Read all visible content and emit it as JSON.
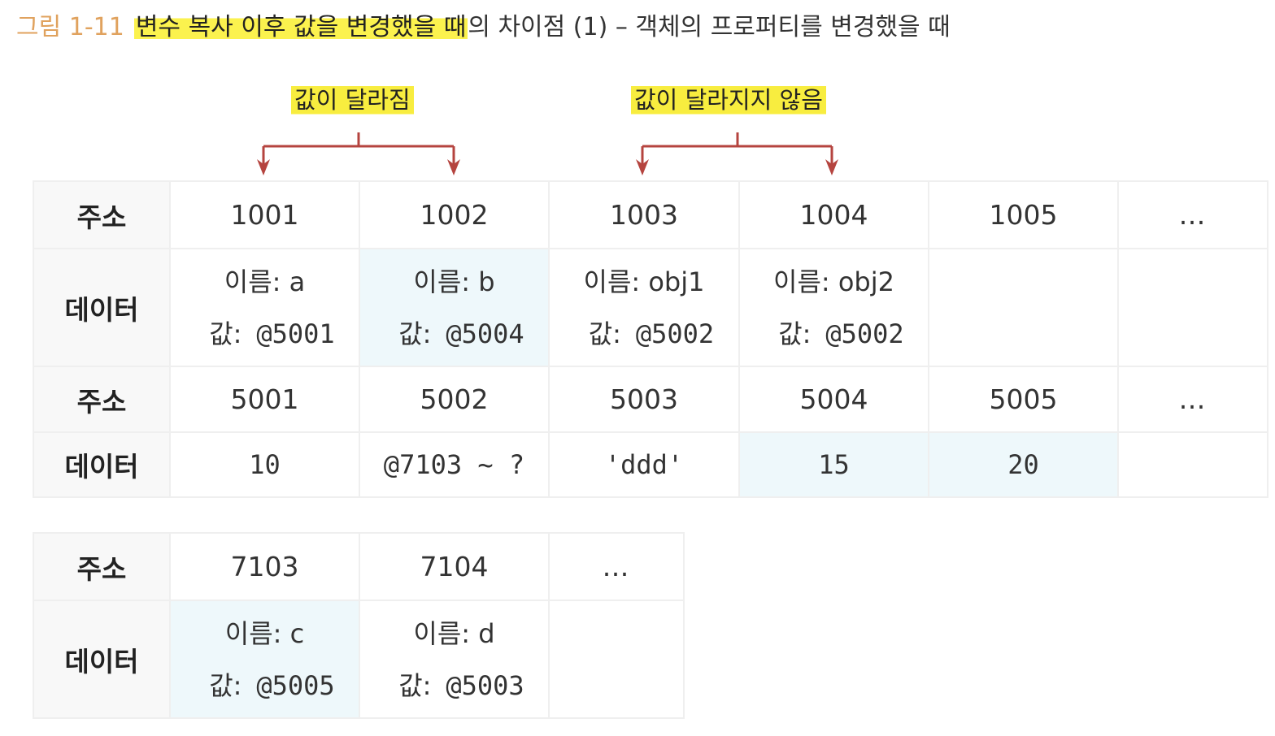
{
  "caption": {
    "number": "그림 1-11",
    "highlighted": "변수 복사 이후 값을 변경했을 때",
    "rest": "의 차이점 (1) – 객체의 프로퍼티를 변경했을 때"
  },
  "labels": {
    "changed": "값이 달라짐",
    "unchanged": "값이 달라지지 않음"
  },
  "colors": {
    "highlight": "#f8ed3f",
    "arrow": "#b5443f",
    "changed_cell": "#eef8fb",
    "header_cell": "#f8f8f8",
    "caption_number": "#e0a25e"
  },
  "table1": {
    "header_addr": "주소",
    "header_data": "데이터",
    "addresses": [
      "1001",
      "1002",
      "1003",
      "1004",
      "1005",
      "…"
    ],
    "cells": [
      {
        "name_label": "이름: a",
        "value_label": "값:",
        "value": "@5001"
      },
      {
        "name_label": "이름: b",
        "value_label": "값:",
        "value": "@5004"
      },
      {
        "name_label": "이름: obj1",
        "value_label": "값:",
        "value": "@5002"
      },
      {
        "name_label": "이름: obj2",
        "value_label": "값:",
        "value": "@5002"
      }
    ]
  },
  "table2": {
    "header_addr": "주소",
    "header_data": "데이터",
    "addresses": [
      "5001",
      "5002",
      "5003",
      "5004",
      "5005",
      "…"
    ],
    "values": [
      "10",
      "@7103 ~ ?",
      "'ddd'",
      "15",
      "20"
    ]
  },
  "table3": {
    "header_addr": "주소",
    "header_data": "데이터",
    "addresses": [
      "7103",
      "7104",
      "…"
    ],
    "cells": [
      {
        "name_label": "이름: c",
        "value_label": "값:",
        "value": "@5005"
      },
      {
        "name_label": "이름: d",
        "value_label": "값:",
        "value": "@5003"
      }
    ]
  }
}
